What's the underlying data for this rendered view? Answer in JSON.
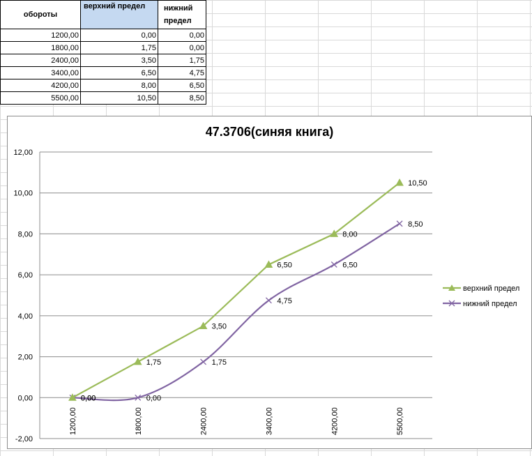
{
  "table": {
    "headers": [
      "обороты",
      "верхний предел",
      "нижний предел"
    ],
    "header_lower_split": [
      "нижний",
      "предел"
    ],
    "rows": [
      [
        "1200,00",
        "0,00",
        "0,00"
      ],
      [
        "1800,00",
        "1,75",
        "0,00"
      ],
      [
        "2400,00",
        "3,50",
        "1,75"
      ],
      [
        "3400,00",
        "6,50",
        "4,75"
      ],
      [
        "4200,00",
        "8,00",
        "6,50"
      ],
      [
        "5500,00",
        "10,50",
        "8,50"
      ]
    ]
  },
  "chart_data": {
    "type": "line",
    "title": "47.3706(синяя книга)",
    "categories": [
      "1200,00",
      "1800,00",
      "2400,00",
      "3400,00",
      "4200,00",
      "5500,00"
    ],
    "series": [
      {
        "name": "верхний предел",
        "values": [
          0.0,
          1.75,
          3.5,
          6.5,
          8.0,
          10.5
        ],
        "labels": [
          "0,00",
          "1,75",
          "3,50",
          "6,50",
          "8,00",
          "10,50"
        ],
        "color": "#9bbb59",
        "marker": "triangle",
        "smooth": false
      },
      {
        "name": "нижний  предел",
        "values": [
          0.0,
          0.0,
          1.75,
          4.75,
          6.5,
          8.5
        ],
        "labels": [
          "0,00",
          "0,00",
          "1,75",
          "4,75",
          "6,50",
          "8,50"
        ],
        "color": "#8064a2",
        "marker": "x",
        "smooth": true
      }
    ],
    "ylim": [
      -2,
      12
    ],
    "yticks": [
      "-2,00",
      "0,00",
      "2,00",
      "4,00",
      "6,00",
      "8,00",
      "10,00",
      "12,00"
    ],
    "legend": "right",
    "grid": true
  }
}
